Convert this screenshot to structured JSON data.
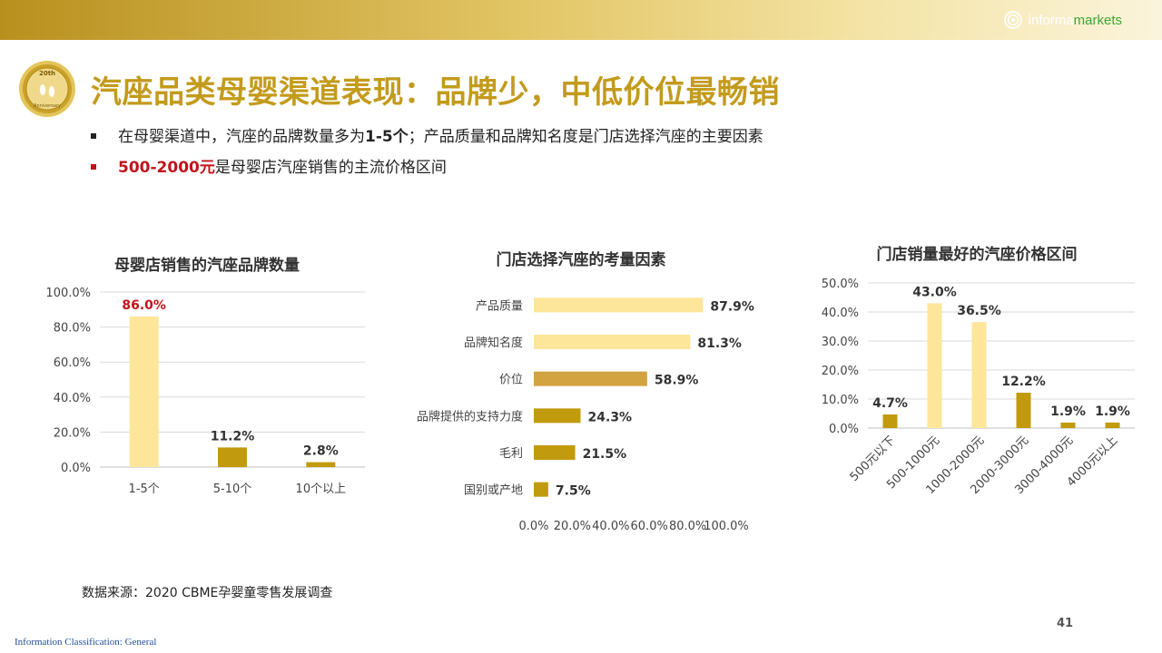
{
  "brand": {
    "part1": "informa",
    "part2": "markets"
  },
  "badge": {
    "top": "20th",
    "bottom": "Anniversary"
  },
  "title": "汽座品类母婴渠道表现：品牌少，中低价位最畅销",
  "bullets": [
    {
      "pre": "在母婴渠道中，汽座的品牌数量多为",
      "bold": "1-5个",
      "post": "；产品质量和品牌知名度是门店选择汽座的主要因素"
    },
    {
      "highlight": "500-2000元",
      "post": "是母婴店汽座销售的主流价格区间"
    }
  ],
  "colors": {
    "title": "#c39b1c",
    "bar_light": "#fde699",
    "bar_dark": "#c29a0d",
    "bar_mid": "#d4a341",
    "highlight": "#c0141d"
  },
  "chart_data": [
    {
      "type": "bar",
      "title": "母婴店销售的汽座品牌数量",
      "categories": [
        "1-5个",
        "5-10个",
        "10个以上"
      ],
      "values": [
        86.0,
        11.2,
        2.8
      ],
      "labels": [
        "86.0%",
        "11.2%",
        "2.8%"
      ],
      "yticks": [
        "0.0%",
        "20.0%",
        "40.0%",
        "60.0%",
        "80.0%",
        "100.0%"
      ],
      "ylim": [
        0,
        100
      ],
      "grid": true
    },
    {
      "type": "bar",
      "orientation": "horizontal",
      "title": "门店选择汽座的考量因素",
      "categories": [
        "产品质量",
        "品牌知名度",
        "价位",
        "品牌提供的支持力度",
        "毛利",
        "国别或产地"
      ],
      "values": [
        87.9,
        81.3,
        58.9,
        24.3,
        21.5,
        7.5
      ],
      "labels": [
        "87.9%",
        "81.3%",
        "58.9%",
        "24.3%",
        "21.5%",
        "7.5%"
      ],
      "xticks": [
        "0.0%",
        "20.0%",
        "40.0%",
        "60.0%",
        "80.0%",
        "100.0%"
      ],
      "xlim": [
        0,
        100
      ],
      "grid": false
    },
    {
      "type": "bar",
      "title": "门店销量最好的汽座价格区间",
      "categories": [
        "500元以下",
        "500-1000元",
        "1000-2000元",
        "2000-3000元",
        "3000-4000元",
        "4000元以上"
      ],
      "values": [
        4.7,
        43.0,
        36.5,
        12.2,
        1.9,
        1.9
      ],
      "labels": [
        "4.7%",
        "43.0%",
        "36.5%",
        "12.2%",
        "1.9%",
        "1.9%"
      ],
      "yticks": [
        "0.0%",
        "10.0%",
        "20.0%",
        "30.0%",
        "40.0%",
        "50.0%"
      ],
      "ylim": [
        0,
        50
      ],
      "grid": true
    }
  ],
  "source": "数据来源：2020 CBME孕婴童零售发展调查",
  "page_number": "41",
  "classification": "Information Classification: General"
}
